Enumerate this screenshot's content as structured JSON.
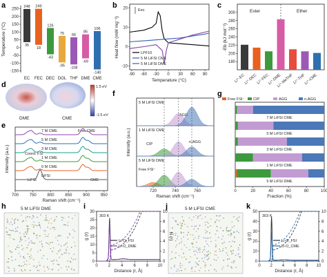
{
  "panels": {
    "a": {
      "letter": "a"
    },
    "b": {
      "letter": "b",
      "exo_label": "Exo"
    },
    "c": {
      "letter": "c",
      "group_left": "Ester",
      "group_right": "Ether"
    },
    "d": {
      "letter": "d",
      "mol_left": "DME",
      "mol_right": "CME",
      "scale_top": "1.5 eV",
      "scale_bottom": "-1.5 eV"
    },
    "e": {
      "letter": "e",
      "annot_free": "Free CME",
      "annot_coord": "Coord. FSI",
      "annot_lifsi": "LiFSI",
      "annot_cme": "CME"
    },
    "f": {
      "letter": "f",
      "sub_top": "5 M LiFSI CME",
      "sub_mid": "1 M LiFSI CME",
      "sub_bot": "5 M LiFSI DME",
      "lab_agg": "AGG",
      "lab_nagg": "n-AGG",
      "lab_cip": "CIP",
      "lab_free": "Free FSI⁻"
    },
    "g": {
      "letter": "g"
    },
    "h": {
      "letter": "h",
      "title": "5 M LiFSI DME"
    },
    "i": {
      "letter": "i",
      "temp": "303 K"
    },
    "j": {
      "letter": "j",
      "title": "5 M LiFSI CME"
    },
    "k": {
      "letter": "k",
      "temp": "303 K"
    }
  },
  "chart_data": [
    {
      "panel": "a",
      "type": "bar",
      "title": "",
      "categories": [
        "EC",
        "FEC",
        "DEC",
        "DOL",
        "THF",
        "DME",
        "CME"
      ],
      "ylabel": "Temperature (°C)",
      "ylim": [
        -160,
        270
      ],
      "yticks": [
        -150,
        -100,
        -50,
        0,
        50,
        100,
        150,
        200,
        250
      ],
      "boiling": [
        248,
        249,
        126,
        75,
        66,
        85,
        106
      ],
      "melting": [
        35,
        18,
        -43,
        -95,
        -108,
        -69,
        -140
      ],
      "colors": [
        "#3a3a3a",
        "#e8611f",
        "#3d9a3c",
        "#e7a93b",
        "#9b59b6",
        "#d65ca6",
        "#2e6fb0"
      ]
    },
    {
      "panel": "b",
      "type": "line",
      "xlabel": "Temperature (°C)",
      "ylabel": "Heat flow (mW mg⁻¹)",
      "xlim": [
        -95,
        100
      ],
      "xticks": [
        -90,
        -60,
        -30,
        0,
        30,
        60,
        90
      ],
      "ylim": [
        -12,
        22
      ],
      "yticks": [
        -10,
        0,
        10,
        20
      ],
      "series": [
        {
          "name": "LPF10",
          "color": "#000000",
          "x": [
            -95,
            -60,
            -40,
            -30,
            -25,
            -20,
            -15,
            -10,
            0,
            30,
            60,
            90,
            100
          ],
          "y": [
            7.5,
            8.5,
            10,
            12,
            18,
            16,
            8,
            4,
            2,
            1.5,
            1,
            0.5,
            0.3
          ]
        },
        {
          "name": "5 M LiFSI CME",
          "color": "#2e5fb0",
          "x": [
            -95,
            -60,
            -30,
            0,
            30,
            60,
            90,
            100
          ],
          "y": [
            2.5,
            3,
            3.5,
            4,
            4.5,
            5.5,
            6.5,
            7
          ]
        },
        {
          "name": "5 M LiFSI DME",
          "color": "#7b3fa6",
          "x": [
            -95,
            -60,
            -30,
            -15,
            -10,
            -5,
            0,
            30,
            60,
            90,
            100
          ],
          "y": [
            -1,
            0,
            1,
            -2,
            -9,
            -2,
            2,
            4,
            6,
            7.5,
            8
          ]
        }
      ]
    },
    {
      "panel": "c",
      "type": "bar",
      "ylabel": "-Eb (kJ mol⁻¹)",
      "ylim": [
        160,
        320
      ],
      "yticks": [
        180,
        200,
        220,
        240,
        260,
        280,
        300
      ],
      "categories": [
        "Li⁺-EC",
        "Li⁺-DEC",
        "Li⁺-FEC",
        "Li⁺-DME",
        "Li⁺-MeTHF",
        "Li⁺-THF",
        "Li⁺-CME"
      ],
      "values": [
        221,
        214,
        205,
        283,
        210,
        205,
        201
      ],
      "colors": [
        "#3a3a3a",
        "#e8611f",
        "#3d9a3c",
        "#d65ca6",
        "#e74c3c",
        "#9b59b6",
        "#2e6fb0"
      ]
    },
    {
      "panel": "e",
      "type": "line",
      "xlabel": "Raman shift (cm⁻¹)",
      "ylabel": "Intensity (a.u.)",
      "xlim": [
        700,
        960
      ],
      "xticks": [
        700,
        750,
        800,
        850,
        900,
        950
      ],
      "series": [
        {
          "name": "7 M CME",
          "color": "#8e44ad"
        },
        {
          "name": "5 M CME",
          "color": "#2e6fb0"
        },
        {
          "name": "3 M CME",
          "color": "#16a085"
        },
        {
          "name": "1 M CME",
          "color": "#3d9a3c"
        },
        {
          "name": "0 M CME",
          "color": "#e8611f"
        },
        {
          "name": "LiFSI",
          "color": "#555555"
        }
      ]
    },
    {
      "panel": "f",
      "type": "area",
      "xlabel": "Raman shift (cm⁻¹)",
      "ylabel": "Intensity (a.u.)",
      "xlim": [
        705,
        775
      ],
      "xticks": [
        720,
        740,
        760
      ],
      "dash_positions": [
        730,
        743,
        755
      ]
    },
    {
      "panel": "g",
      "type": "bar",
      "xlabel": "Fraction (%)",
      "xlim": [
        0,
        100
      ],
      "xticks": [
        0,
        20,
        40,
        60,
        80,
        100
      ],
      "legend": [
        "Free FSI⁻",
        "CIP",
        "AGG",
        "n-AGG"
      ],
      "colors": [
        "#e8611f",
        "#3d9a3c",
        "#c39bd3",
        "#4a78b8"
      ],
      "categories": [
        "7 M LiFSI CME",
        "5 M LiFSI CME",
        "3 M LiFSI CME",
        "1 M LiFSI CME",
        "5 M LiFSI DME"
      ],
      "rows": [
        [
          0,
          2,
          18,
          80
        ],
        [
          0,
          3,
          40,
          57
        ],
        [
          0,
          3,
          55,
          42
        ],
        [
          0,
          20,
          55,
          25
        ],
        [
          2,
          38,
          42,
          18
        ]
      ]
    },
    {
      "panel": "i",
      "type": "line",
      "xlabel": "Distance (r, Å)",
      "ylabel": "g (r)",
      "y2label": "N (r)",
      "xlim": [
        0,
        10
      ],
      "xticks": [
        0,
        2,
        4,
        6,
        8,
        10
      ],
      "ylim": [
        0,
        30
      ],
      "yticks": [
        0,
        5,
        10,
        15,
        20,
        25,
        30
      ],
      "y2ticks": [
        0,
        2,
        4,
        6,
        8,
        10
      ],
      "series": [
        {
          "name": "Li-O_FSI",
          "color": "#333333"
        },
        {
          "name": "Li-O_DME",
          "color": "#7b3fa6"
        }
      ]
    },
    {
      "panel": "k",
      "type": "line",
      "xlabel": "Distance (r, Å)",
      "ylabel": "g (r)",
      "y2label": "N (r)",
      "xlim": [
        0,
        10
      ],
      "xticks": [
        0,
        2,
        4,
        6,
        8,
        10
      ],
      "ylim": [
        0,
        50
      ],
      "yticks": [
        0,
        10,
        20,
        30,
        40,
        50
      ],
      "y2ticks": [
        0,
        2,
        4,
        6,
        8,
        10
      ],
      "series": [
        {
          "name": "Li-O_FSI",
          "color": "#333333"
        },
        {
          "name": "Li-O_CME",
          "color": "#2e6fb0"
        }
      ]
    }
  ]
}
